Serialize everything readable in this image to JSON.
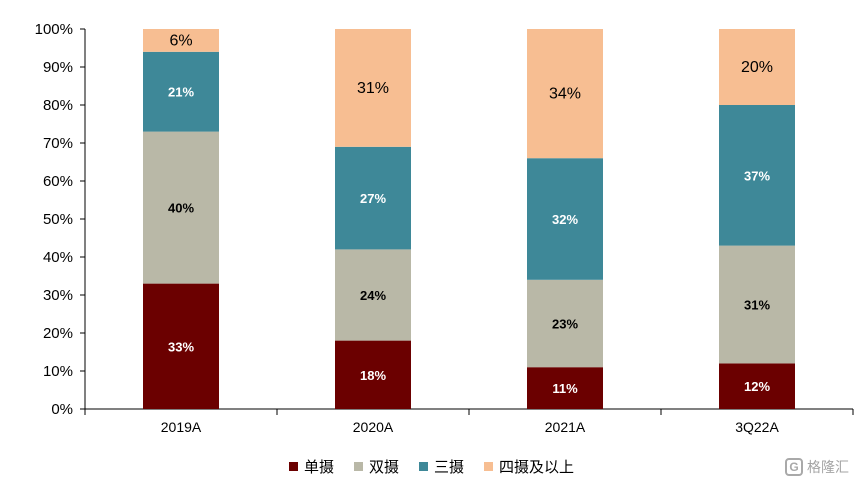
{
  "chart_data": {
    "type": "bar",
    "stacked": true,
    "categories": [
      "2019A",
      "2020A",
      "2021A",
      "3Q22A"
    ],
    "series": [
      {
        "name": "单摄",
        "color": "#6b0000",
        "values": [
          33,
          18,
          11,
          12
        ],
        "labels": [
          "33%",
          "18%",
          "11%",
          "12%"
        ]
      },
      {
        "name": "双摄",
        "color": "#b9b8a7",
        "values": [
          40,
          24,
          23,
          31
        ],
        "labels": [
          "40%",
          "24%",
          "23%",
          "31%"
        ]
      },
      {
        "name": "三摄",
        "color": "#3e8898",
        "values": [
          21,
          27,
          32,
          37
        ],
        "labels": [
          "21%",
          "27%",
          "32%",
          "37%"
        ]
      },
      {
        "name": "四摄及以上",
        "color": "#f7be92",
        "values": [
          6,
          31,
          34,
          20
        ],
        "labels": [
          "6%",
          "31%",
          "34%",
          "20%"
        ]
      }
    ],
    "yticks": [
      "0%",
      "10%",
      "20%",
      "30%",
      "40%",
      "50%",
      "60%",
      "70%",
      "80%",
      "90%",
      "100%"
    ],
    "ylim": [
      0,
      100
    ],
    "legend_position": "bottom",
    "grid": false
  },
  "watermark": {
    "icon": "G",
    "text": "格隆汇"
  }
}
